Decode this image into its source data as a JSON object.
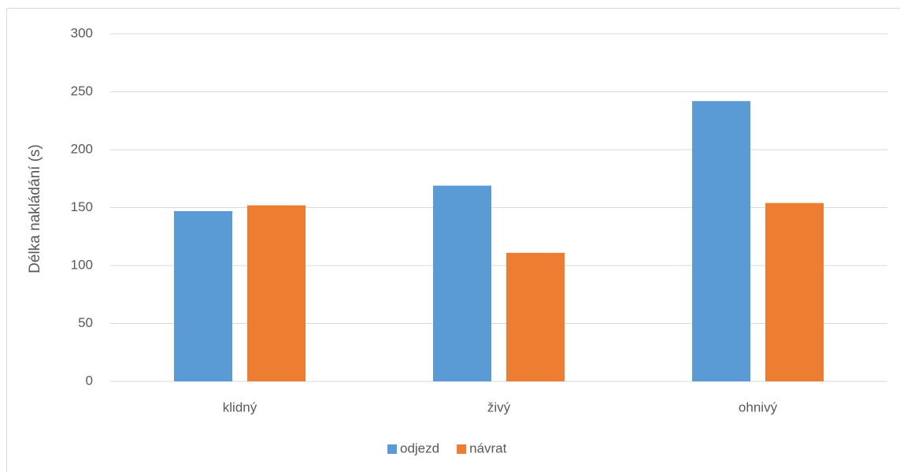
{
  "chart_data": {
    "type": "bar",
    "y_label": "Délka nakládání (s)",
    "categories": [
      "klidný",
      "živý",
      "ohnivý"
    ],
    "series": [
      {
        "name": "odjezd",
        "color": "#5b9bd5",
        "values": [
          147,
          169,
          242
        ]
      },
      {
        "name": "návrat",
        "color": "#ed7d31",
        "values": [
          152,
          111,
          154
        ]
      }
    ],
    "ylim": [
      0,
      300
    ],
    "yticks": [
      0,
      50,
      100,
      150,
      200,
      250,
      300
    ],
    "grid": true,
    "legend": "bottom"
  }
}
